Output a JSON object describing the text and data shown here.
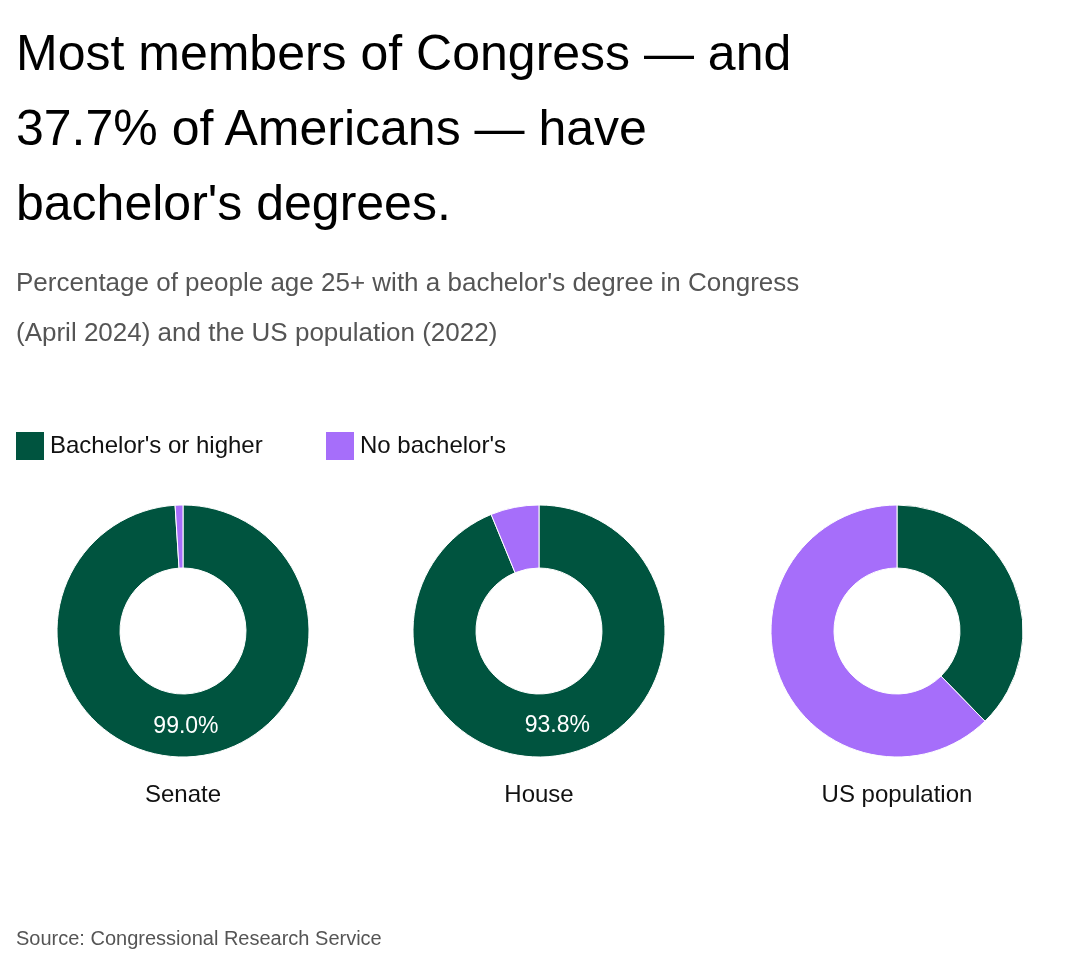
{
  "chart_data": [
    {
      "type": "donut",
      "title": "Most members of Congress — and 37.7% of Americans — have bachelor's degrees.",
      "subtitle": "Percentage of people age 25+ with a bachelor's degree in Congress (April 2024) and the US population (2022)",
      "legend": "top",
      "xlabel": "Senate",
      "categories": [
        "Bachelor's or higher",
        "No bachelor's"
      ],
      "values": [
        99.0,
        1.0
      ],
      "colors": [
        "#00543f",
        "#a66efa"
      ],
      "value_labels": [
        "99.0%",
        null
      ],
      "annotations": [
        "Source: Congressional Research Service"
      ]
    },
    {
      "type": "donut",
      "xlabel": "House",
      "values": [
        93.8,
        6.2
      ],
      "colors": [
        "#00543f",
        "#a66efa"
      ],
      "value_labels": [
        "93.8%",
        null
      ]
    },
    {
      "type": "donut",
      "xlabel": "US population",
      "values": [
        37.7,
        62.3
      ],
      "colors": [
        "#00543f",
        "#a66efa"
      ]
    }
  ]
}
